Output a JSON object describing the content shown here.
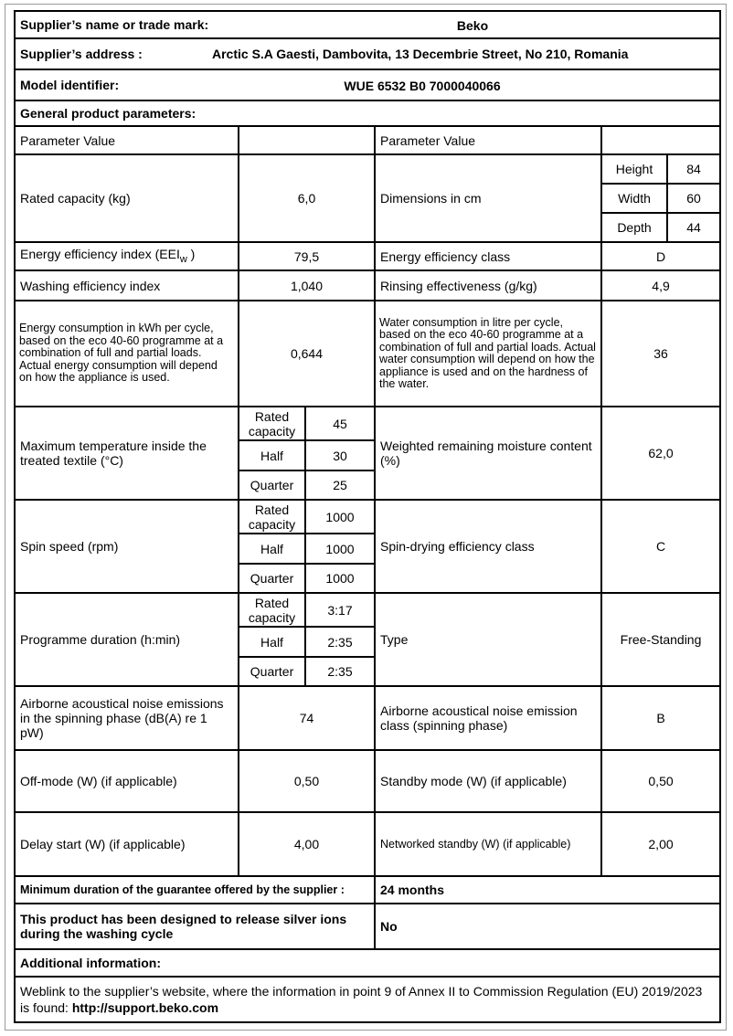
{
  "header": {
    "supplier_label": "Supplier’s name or trade mark:",
    "supplier_value": "Beko",
    "address_label": "Supplier’s address :",
    "address_value": "Arctic S.A  Gaesti, Dambovita, 13 Decembrie Street, No 210, Romania",
    "model_label": "Model identifier:",
    "model_value": "WUE 6532 B0 7000040066",
    "general_label": "General product parameters:"
  },
  "columns": {
    "left": "Parameter Value",
    "right": "Parameter Value"
  },
  "rows": {
    "capacity": {
      "label": "Rated capacity (kg)",
      "value": "6,0"
    },
    "dimensions": {
      "label": "Dimensions in cm",
      "height_label": "Height",
      "height": "84",
      "width_label": "Width",
      "width": "60",
      "depth_label": "Depth",
      "depth": "44"
    },
    "eei": {
      "label": "Energy efficiency index (EEI",
      "sub": "w",
      "label_end": " )",
      "value": "79,5"
    },
    "energy_class": {
      "label": "Energy efficiency class",
      "value": "D"
    },
    "washing": {
      "label": "Washing efficiency index",
      "value": "1,040"
    },
    "rinsing": {
      "label": "Rinsing effectiveness (g/kg)",
      "value": "4,9"
    },
    "energy_consumption": {
      "label": "Energy consumption in kWh per cycle, based on the eco 40-60 programme at a combination of full and partial loads. Actual energy consumption will depend on how the appliance is used.",
      "value": "0,644"
    },
    "water_consumption": {
      "label": "Water consumption in litre per cycle, based on the eco 40-60 programme at a combination of full and partial loads. Actual water consumption will depend on how the appliance is used and on the hardness of the water.",
      "value": "36"
    },
    "max_temp": {
      "label": "Maximum temperature inside the treated textile (°C)",
      "rated_label": "Rated capacity",
      "rated": "45",
      "half_label": "Half",
      "half": "30",
      "quarter_label": "Quarter",
      "quarter": "25"
    },
    "moisture": {
      "label": "Weighted remaining moisture content (%)",
      "value": "62,0"
    },
    "spin": {
      "label": "Spin speed (rpm)",
      "rated_label": "Rated capacity",
      "rated": "1000",
      "half_label": "Half",
      "half": "1000",
      "quarter_label": "Quarter",
      "quarter": "1000"
    },
    "spin_class": {
      "label": "Spin-drying efficiency class",
      "value": "C"
    },
    "duration": {
      "label": "Programme duration (h:min)",
      "rated_label": "Rated capacity",
      "rated": "3:17",
      "half_label": "Half",
      "half": "2:35",
      "quarter_label": "Quarter",
      "quarter": "2:35"
    },
    "type": {
      "label": "Type",
      "value": "Free-Standing"
    },
    "noise": {
      "label": "Airborne acoustical noise emissions in the spinning phase (dB(A) re 1 pW)",
      "value": "74"
    },
    "noise_class": {
      "label": "Airborne acoustical noise emission class (spinning phase)",
      "value": "B"
    },
    "off_mode": {
      "label": "Off-mode (W) (if applicable)",
      "value": "0,50"
    },
    "standby": {
      "label": "Standby mode (W) (if applicable)",
      "value": "0,50"
    },
    "delay": {
      "label": "Delay start (W) (if applicable)",
      "value": "4,00"
    },
    "networked": {
      "label": "Networked standby (W) (if applicable)",
      "value": "2,00"
    }
  },
  "footer": {
    "guarantee_label": "Minimum duration of the guarantee offered by the supplier :",
    "guarantee_value": "24  months",
    "silver_label": "This product has been designed to release silver ions during the washing cycle",
    "silver_value": "No",
    "additional_label": "Additional information:",
    "weblink_text": "Weblink to the supplier’s website, where the information in point 9 of Annex II to Commission Regulation (EU) 2019/2023 is found:",
    "weblink_url": "http://support.beko.com"
  }
}
